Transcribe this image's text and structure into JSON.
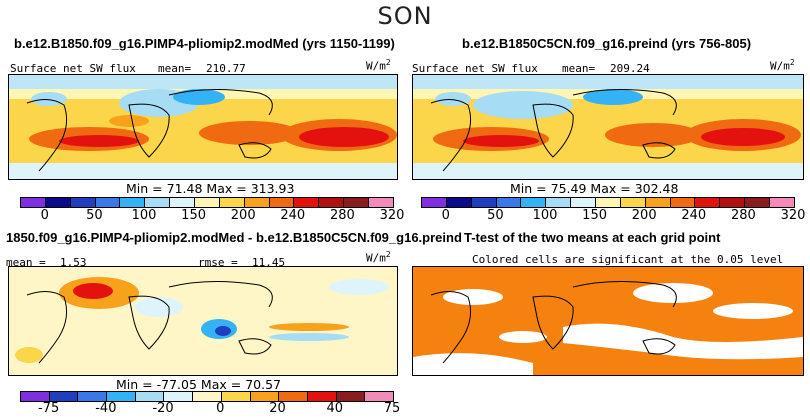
{
  "season": "SON",
  "panels": {
    "top_left": {
      "title": "b.e12.B1850.f09_g16.PIMP4-pliomip2.modMed (yrs 1150-1199)",
      "variable": "Surface net SW flux",
      "stat_label": "mean=",
      "stat_value": "210.77",
      "units": "W/m",
      "units_exp": "2",
      "min_label": "Min =",
      "min_value": "71.48",
      "max_label": "Max =",
      "max_value": "313.93"
    },
    "top_right": {
      "title": "b.e12.B1850C5CN.f09_g16.preind (yrs 756-805)",
      "variable": "Surface net SW flux",
      "stat_label": "mean=",
      "stat_value": "209.24",
      "units": "W/m",
      "units_exp": "2",
      "min_label": "Min =",
      "min_value": "75.49",
      "max_label": "Max =",
      "max_value": "302.48"
    },
    "bottom_left": {
      "title": "1850.f09_g16.PIMP4-pliomip2.modMed - b.e12.B1850C5CN.f09_g16.preind",
      "mean_label": "mean =",
      "mean_value": "1.53",
      "rmse_label": "rmse =",
      "rmse_value": "11.45",
      "units": "W/m",
      "units_exp": "2",
      "min_label": "Min =",
      "min_value": "-77.05",
      "max_label": "Max =",
      "max_value": "70.57"
    },
    "bottom_right": {
      "title": "T-test of the two means at each grid point",
      "subtitle": "Colored cells are significant at the 0.05 level"
    }
  },
  "colorbars": {
    "abs_ticks": [
      "0",
      "50",
      "100",
      "150",
      "200",
      "240",
      "280",
      "320"
    ],
    "diff_ticks": [
      "-75",
      "-40",
      "-20",
      "0",
      "20",
      "40",
      "75"
    ],
    "abs_colors": [
      "#7f2fe0",
      "#0a0a8a",
      "#1f3fbf",
      "#3a78e8",
      "#33b3f5",
      "#a7dcf5",
      "#dff3fb",
      "#fff6b5",
      "#fcd64a",
      "#f7a21a",
      "#f06a12",
      "#e3120f",
      "#b0100e",
      "#8a1e1e",
      "#f28bb9"
    ],
    "diff_colors": [
      "#7f2fe0",
      "#1f3fbf",
      "#3a78e8",
      "#33b3f5",
      "#a7dcf5",
      "#dff3fb",
      "#fff6c8",
      "#fcd64a",
      "#f7a21a",
      "#f06a12",
      "#e3120f",
      "#8a1e1e",
      "#f28bb9"
    ],
    "signif_color": "#f5820f"
  }
}
